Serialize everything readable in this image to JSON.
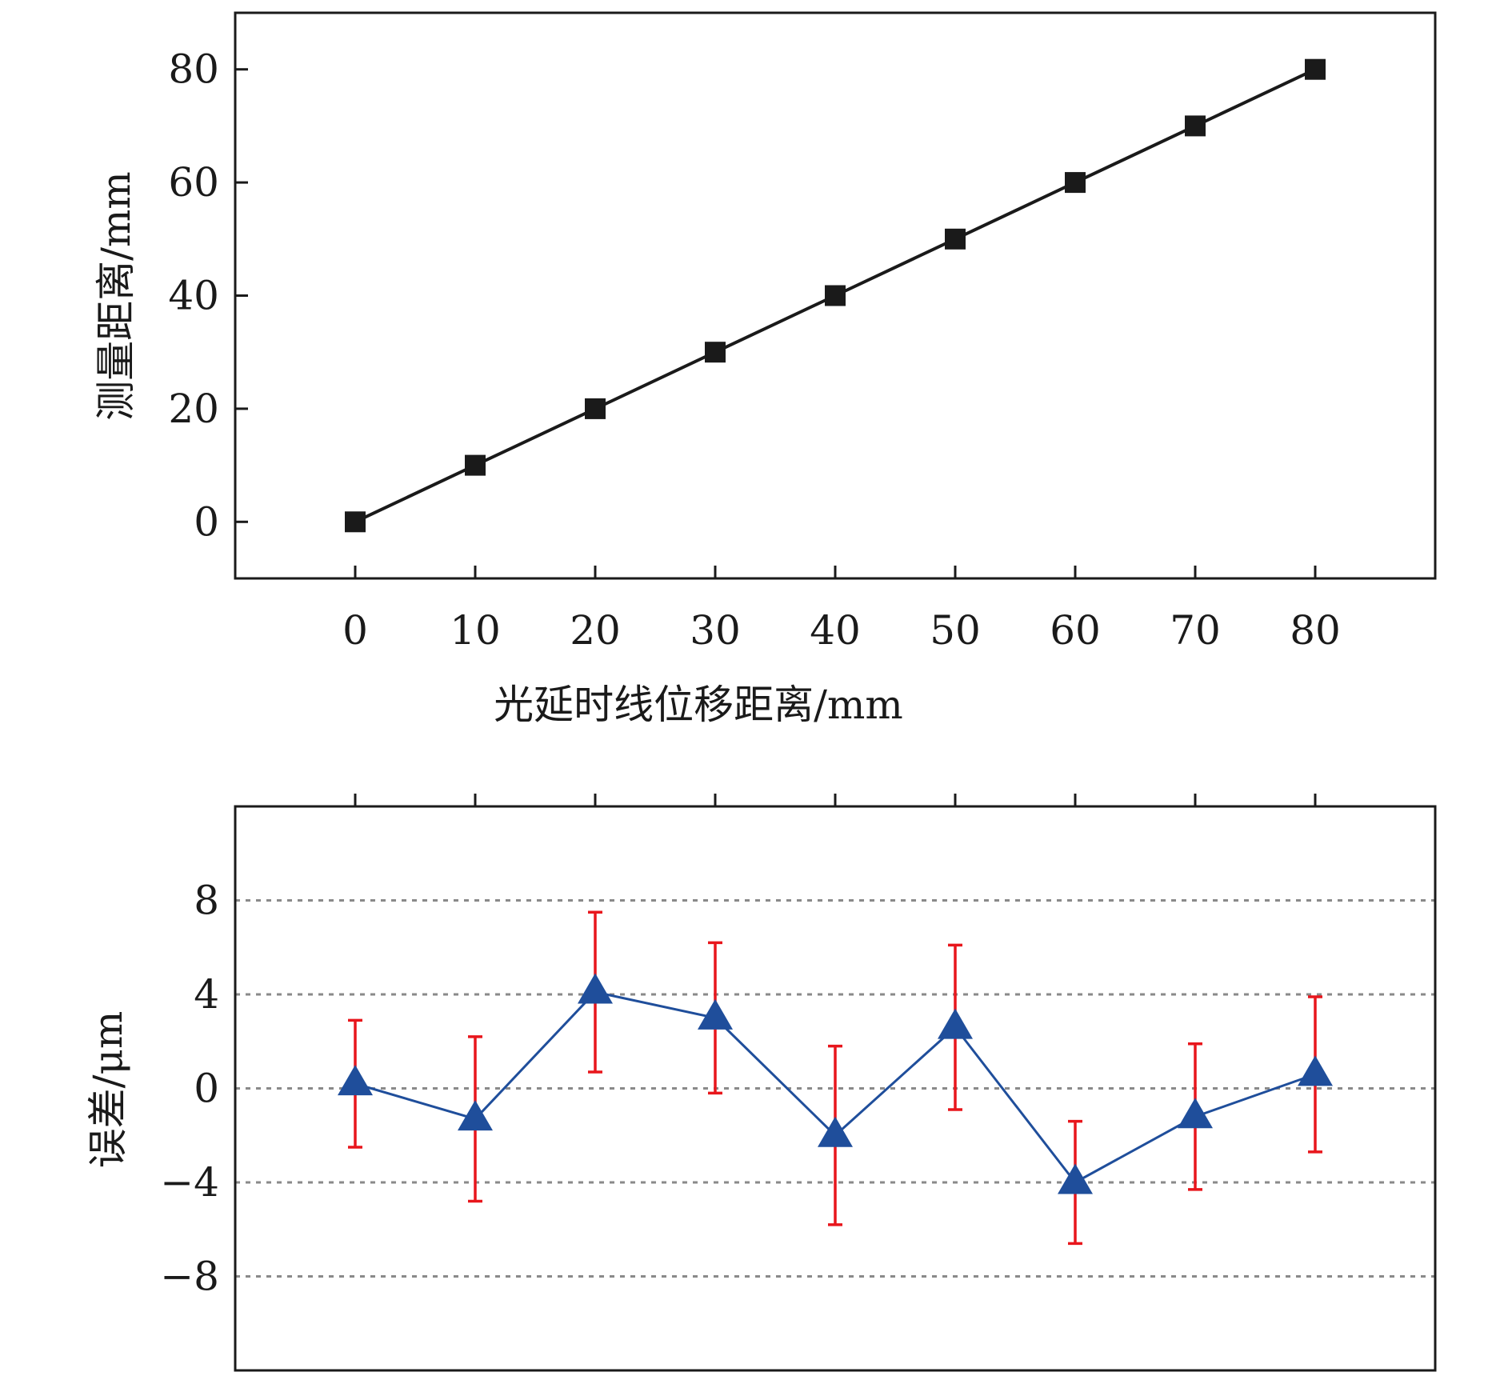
{
  "chart_data": [
    {
      "type": "line",
      "xlabel": "光延时线位移距离/mm",
      "ylabel": "测量距离/mm",
      "xlim": [
        -10,
        90
      ],
      "ylim": [
        -10,
        90
      ],
      "x_ticks": [
        "0",
        "10",
        "20",
        "30",
        "40",
        "50",
        "60",
        "70",
        "80"
      ],
      "y_ticks": [
        "0",
        "20",
        "40",
        "60",
        "80"
      ],
      "grid": false,
      "series": [
        {
          "x": [
            0,
            10,
            20,
            30,
            40,
            50,
            60,
            70,
            80
          ],
          "y": [
            0,
            10,
            20,
            30,
            40,
            50,
            60,
            70,
            80
          ],
          "marker": "square",
          "color": "#1a1a1a"
        }
      ]
    },
    {
      "type": "line",
      "ylabel": "误差/μm",
      "xlim": [
        -10,
        90
      ],
      "ylim": [
        -12,
        12
      ],
      "y_ticks": [
        "8",
        "4",
        "0",
        "−4",
        "−8"
      ],
      "grid": "horizontal dashed",
      "series": [
        {
          "x": [
            0,
            10,
            20,
            30,
            40,
            50,
            60,
            70,
            80
          ],
          "y": [
            0.2,
            -1.3,
            4.1,
            3.0,
            -2.0,
            2.6,
            -4.0,
            -1.2,
            0.6
          ],
          "error": [
            2.7,
            3.5,
            3.4,
            3.2,
            3.8,
            3.5,
            2.6,
            3.1,
            3.3
          ],
          "marker": "triangle",
          "line_color": "#1f4e9b",
          "marker_color": "#1f4e9b",
          "error_color": "#e8161c"
        }
      ]
    }
  ]
}
